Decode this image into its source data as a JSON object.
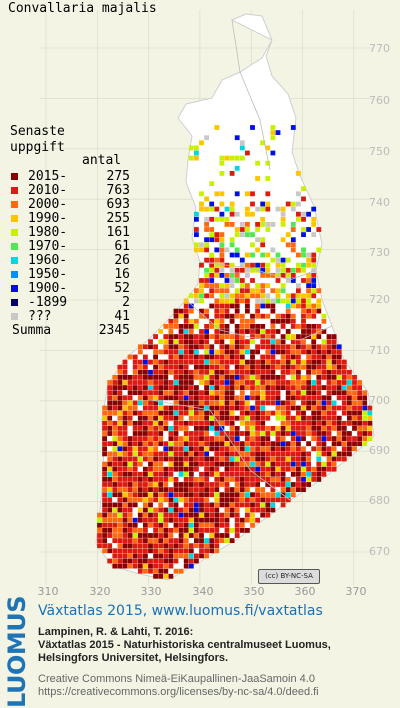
{
  "map": {
    "title": "Convallaria majalis",
    "legend_heading": [
      "Senaste",
      "uppgift"
    ],
    "legend_count_header": "antal",
    "legend": [
      {
        "label": "2015-",
        "count": "275",
        "color": "#8b0000"
      },
      {
        "label": "2010-",
        "count": "763",
        "color": "#dd1a10"
      },
      {
        "label": "2000-",
        "count": "693",
        "color": "#ff6a10"
      },
      {
        "label": "1990-",
        "count": "255",
        "color": "#ffc400"
      },
      {
        "label": "1980-",
        "count": "161",
        "color": "#c8f000"
      },
      {
        "label": "1970-",
        "count": "61",
        "color": "#50e850"
      },
      {
        "label": "1960-",
        "count": "26",
        "color": "#00d8e0"
      },
      {
        "label": "1950-",
        "count": "16",
        "color": "#0090ff"
      },
      {
        "label": "1900-",
        "count": "52",
        "color": "#0010e0"
      },
      {
        "label": "-1899",
        "count": "2",
        "color": "#000070"
      },
      {
        "label": "???",
        "count": "41",
        "color": "#c8c8c8"
      }
    ],
    "summa_label": "Summa",
    "summa_count": "2345",
    "y_ticks": [
      "770",
      "760",
      "750",
      "740",
      "730",
      "720",
      "710",
      "700",
      "690",
      "680",
      "670"
    ],
    "x_ticks": [
      "310",
      "320",
      "330",
      "340",
      "350",
      "360",
      "370"
    ],
    "land_color": "#ffffff",
    "background_color": "#f3f4e4",
    "grid_color": "#d8d8c8",
    "cc_badge": "(cc) BY-NC-SA"
  },
  "footer": {
    "logo": "LUOMUS",
    "heading": "Växtatlas 2015, www.luomus.fi/vaxtatlas",
    "citation": [
      "Lampinen, R. & Lahti, T. 2016:",
      "Växtatlas 2015 - Naturhistoriska centralmuseet Luomus,",
      "Helsingfors Universitet, Helsingfors."
    ],
    "license": [
      "Creative Commons Nimeä-EiKaupallinen-JaaSamoin 4.0",
      "https://creativecommons.org/licenses/by-nc-sa/4.0/deed.fi"
    ]
  }
}
